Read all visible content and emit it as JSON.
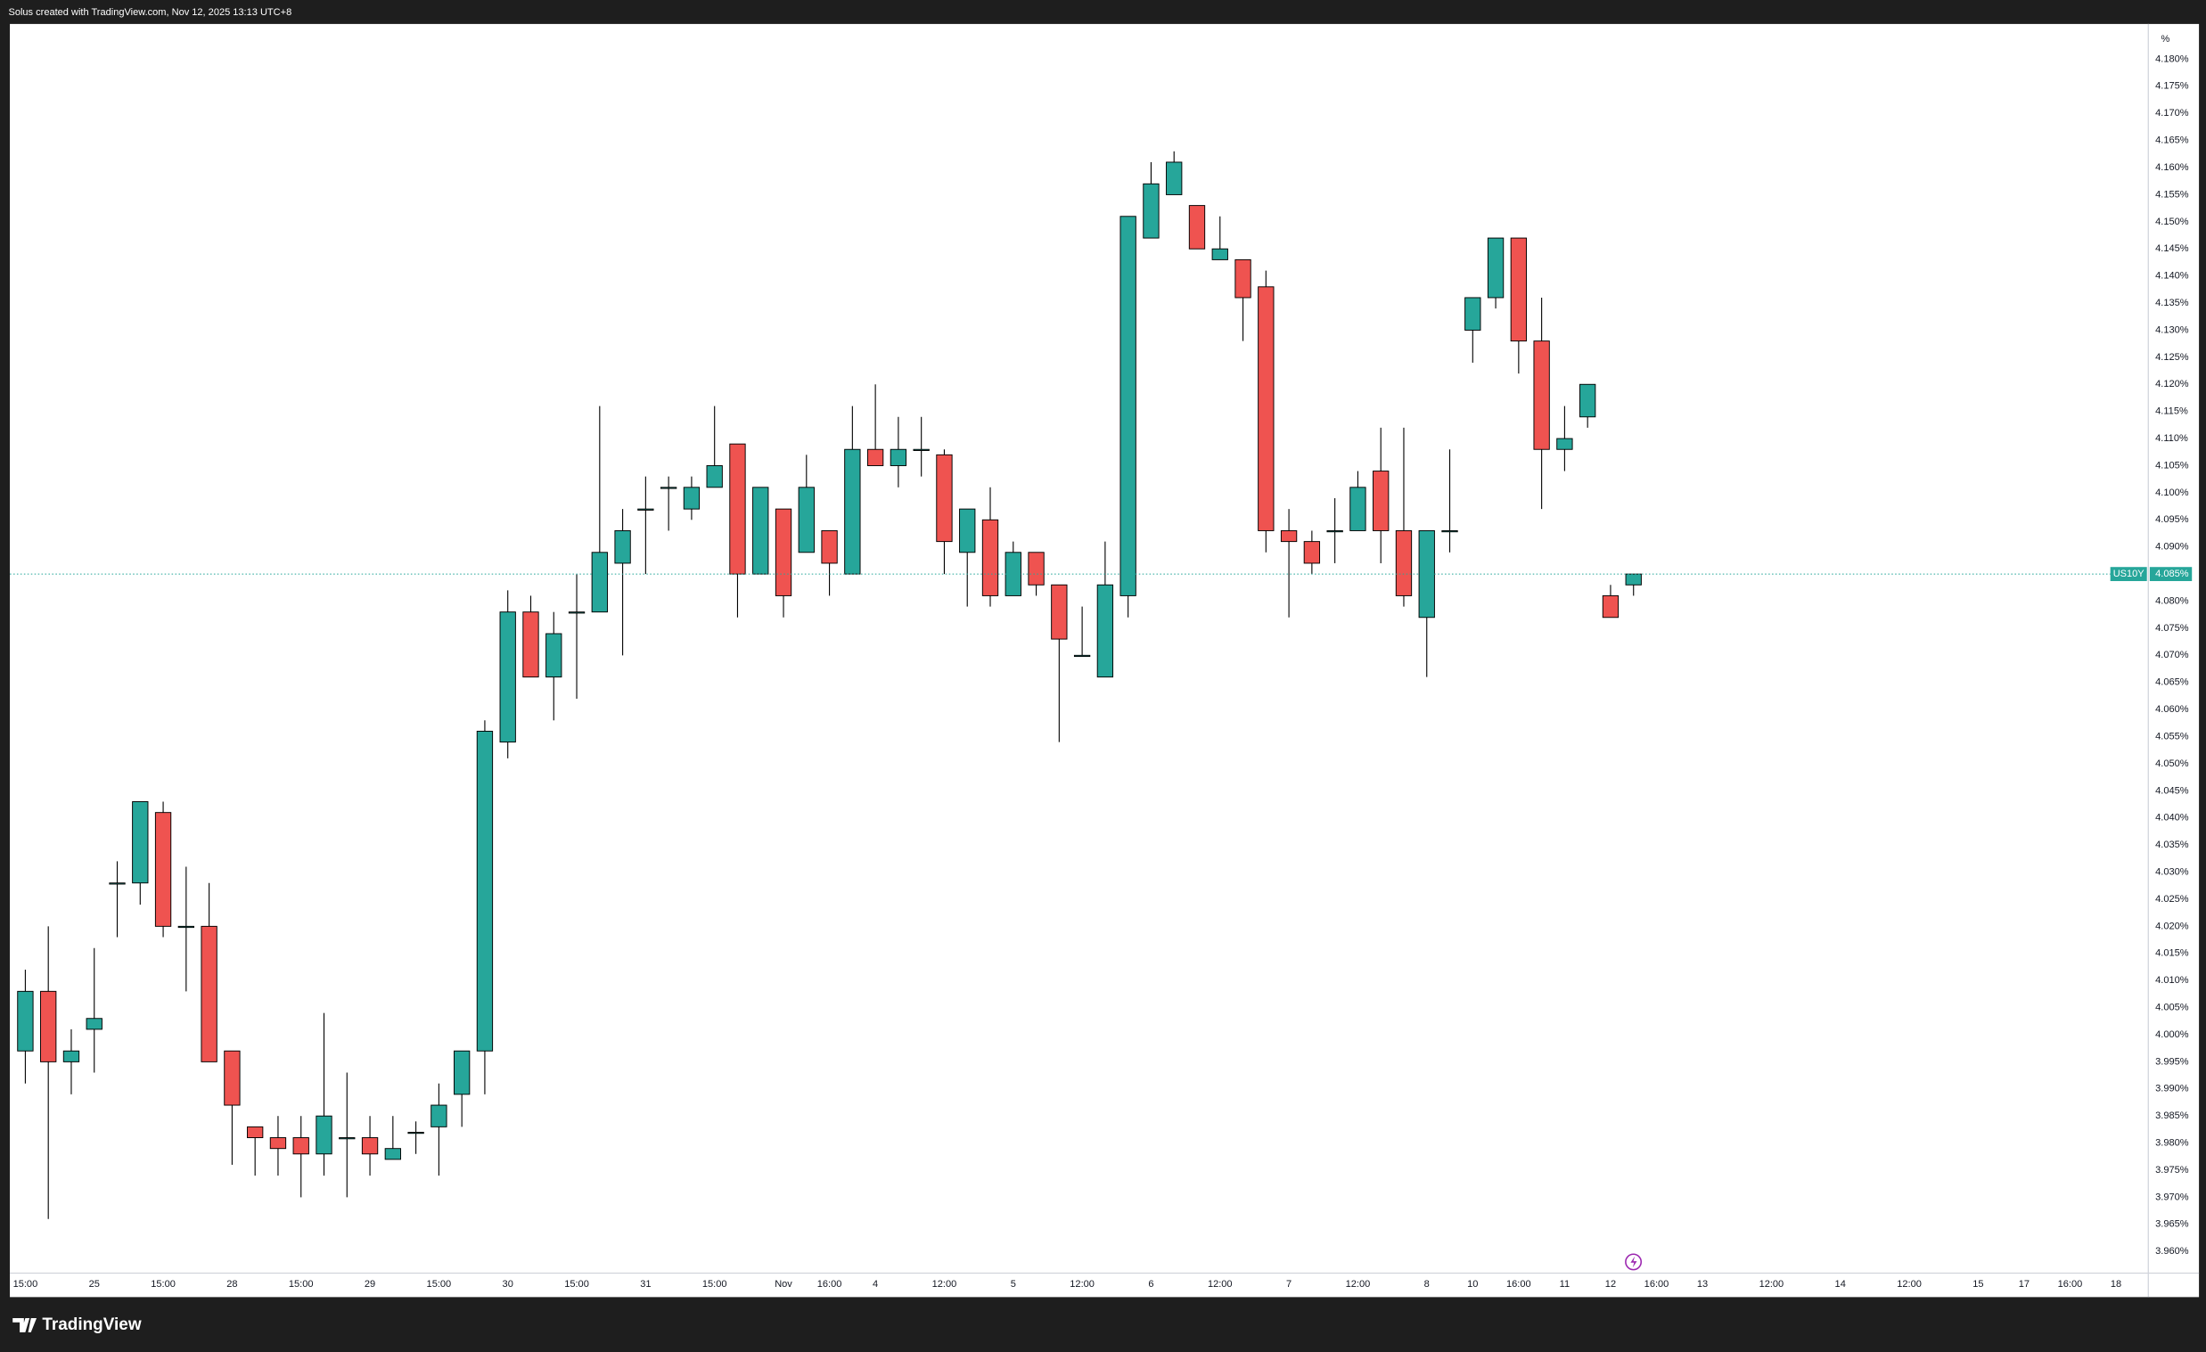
{
  "header": "Solus created with TradingView.com, Nov 12, 2025 13:13 UTC+8",
  "footer_logo": "TradingView",
  "chart_data": {
    "type": "candlestick",
    "symbol": "US10Y",
    "y_unit": "%",
    "up_color": "#26a69a",
    "down_color": "#ef5350",
    "grid": false,
    "categories": [
      "15:00",
      null,
      null,
      "25",
      null,
      null,
      "15:00",
      null,
      null,
      "28",
      null,
      null,
      "15:00",
      null,
      null,
      "29",
      null,
      null,
      "15:00",
      null,
      null,
      "30",
      null,
      null,
      "15:00",
      null,
      null,
      "31",
      null,
      null,
      "15:00",
      null,
      null,
      "Nov",
      null,
      "16:00",
      null,
      "4",
      null,
      null,
      "12:00",
      null,
      null,
      "5",
      null,
      null,
      "12:00",
      null,
      null,
      "6",
      null,
      null,
      "12:00",
      null,
      null,
      "7",
      null,
      null,
      "12:00",
      null,
      null,
      "8",
      null,
      "10",
      null,
      "16:00",
      null,
      "11",
      null,
      "12",
      null,
      "16:00",
      null,
      "13",
      null,
      null,
      "12:00",
      null,
      null,
      "14",
      null,
      null,
      "12:00",
      null,
      null,
      "15",
      null,
      "17",
      null,
      "16:00",
      null,
      "18"
    ],
    "open": [
      3.997,
      4.008,
      3.995,
      4.001,
      4.028,
      4.028,
      4.041,
      4.02,
      4.02,
      3.997,
      3.983,
      3.981,
      3.981,
      3.978,
      3.981,
      3.981,
      3.977,
      3.982,
      3.983,
      3.989,
      3.997,
      4.054,
      4.078,
      4.066,
      4.078,
      4.078,
      4.087,
      4.097,
      4.101,
      4.097,
      4.101,
      4.109,
      4.085,
      4.097,
      4.089,
      4.093,
      4.085,
      4.108,
      4.105,
      4.108,
      4.107,
      4.089,
      4.095,
      4.081,
      4.089,
      4.083,
      4.07,
      4.066,
      4.081,
      4.147,
      4.155,
      4.153,
      4.143,
      4.143,
      4.138,
      4.093,
      4.091,
      4.093,
      4.093,
      4.104,
      4.093,
      4.077,
      4.093,
      4.13,
      4.136,
      4.147,
      4.128,
      4.108,
      4.114,
      4.081,
      4.083,
      null,
      null,
      null,
      null,
      null,
      null,
      null,
      null,
      null,
      null,
      null,
      null,
      null,
      null,
      null,
      null,
      null,
      null,
      null,
      null,
      null
    ],
    "high": [
      4.012,
      4.02,
      4.001,
      4.016,
      4.032,
      4.043,
      4.043,
      4.031,
      4.028,
      3.997,
      3.983,
      3.985,
      3.985,
      4.004,
      3.993,
      3.985,
      3.985,
      3.984,
      3.991,
      3.997,
      4.058,
      4.082,
      4.081,
      4.078,
      4.085,
      4.116,
      4.097,
      4.103,
      4.103,
      4.103,
      4.116,
      4.109,
      4.101,
      4.097,
      4.107,
      4.093,
      4.116,
      4.12,
      4.114,
      4.114,
      4.108,
      4.097,
      4.101,
      4.091,
      4.089,
      4.083,
      4.079,
      4.091,
      4.151,
      4.161,
      4.163,
      4.153,
      4.151,
      4.143,
      4.141,
      4.097,
      4.093,
      4.099,
      4.104,
      4.112,
      4.112,
      4.093,
      4.108,
      4.136,
      4.147,
      4.147,
      4.136,
      4.116,
      4.12,
      4.083,
      4.085,
      null,
      null,
      null,
      null,
      null,
      null,
      null,
      null,
      null,
      null,
      null,
      null,
      null,
      null,
      null,
      null,
      null,
      null,
      null,
      null,
      null
    ],
    "low": [
      3.991,
      3.966,
      3.989,
      3.993,
      4.018,
      4.024,
      4.018,
      4.008,
      3.995,
      3.976,
      3.974,
      3.974,
      3.97,
      3.974,
      3.97,
      3.974,
      3.977,
      3.978,
      3.974,
      3.983,
      3.989,
      4.051,
      4.066,
      4.058,
      4.062,
      4.078,
      4.07,
      4.085,
      4.093,
      4.095,
      4.101,
      4.077,
      4.085,
      4.077,
      4.089,
      4.081,
      4.085,
      4.105,
      4.101,
      4.103,
      4.085,
      4.079,
      4.079,
      4.081,
      4.081,
      4.054,
      4.07,
      4.066,
      4.077,
      4.147,
      4.155,
      4.145,
      4.143,
      4.128,
      4.089,
      4.077,
      4.085,
      4.087,
      4.093,
      4.087,
      4.079,
      4.066,
      4.089,
      4.124,
      4.134,
      4.122,
      4.097,
      4.104,
      4.112,
      4.077,
      4.081,
      null,
      null,
      null,
      null,
      null,
      null,
      null,
      null,
      null,
      null,
      null,
      null,
      null,
      null,
      null,
      null,
      null,
      null,
      null,
      null,
      null
    ],
    "close": [
      4.008,
      3.995,
      3.997,
      4.003,
      4.028,
      4.043,
      4.02,
      4.02,
      3.995,
      3.987,
      3.981,
      3.979,
      3.978,
      3.985,
      3.981,
      3.978,
      3.979,
      3.982,
      3.987,
      3.997,
      4.056,
      4.078,
      4.066,
      4.074,
      4.078,
      4.089,
      4.093,
      4.097,
      4.101,
      4.101,
      4.105,
      4.085,
      4.101,
      4.081,
      4.101,
      4.087,
      4.108,
      4.105,
      4.108,
      4.108,
      4.091,
      4.097,
      4.081,
      4.089,
      4.083,
      4.073,
      4.07,
      4.083,
      4.151,
      4.157,
      4.161,
      4.145,
      4.145,
      4.136,
      4.093,
      4.091,
      4.087,
      4.093,
      4.101,
      4.093,
      4.081,
      4.093,
      4.093,
      4.136,
      4.147,
      4.128,
      4.108,
      4.11,
      4.12,
      4.077,
      4.085,
      null,
      null,
      null,
      null,
      null,
      null,
      null,
      null,
      null,
      null,
      null,
      null,
      null,
      null,
      null,
      null,
      null,
      null,
      null,
      null,
      null
    ],
    "last_price": {
      "value": 4.085,
      "label": "4.085%"
    },
    "ylim": [
      3.956,
      4.1865
    ],
    "yticks": [
      {
        "value": 3.96,
        "label": "3.960%"
      },
      {
        "value": 3.965,
        "label": "3.965%"
      },
      {
        "value": 3.97,
        "label": "3.970%"
      },
      {
        "value": 3.975,
        "label": "3.975%"
      },
      {
        "value": 3.98,
        "label": "3.980%"
      },
      {
        "value": 3.985,
        "label": "3.985%"
      },
      {
        "value": 3.99,
        "label": "3.990%"
      },
      {
        "value": 3.995,
        "label": "3.995%"
      },
      {
        "value": 4.0,
        "label": "4.000%"
      },
      {
        "value": 4.005,
        "label": "4.005%"
      },
      {
        "value": 4.01,
        "label": "4.010%"
      },
      {
        "value": 4.015,
        "label": "4.015%"
      },
      {
        "value": 4.02,
        "label": "4.020%"
      },
      {
        "value": 4.025,
        "label": "4.025%"
      },
      {
        "value": 4.03,
        "label": "4.030%"
      },
      {
        "value": 4.035,
        "label": "4.035%"
      },
      {
        "value": 4.04,
        "label": "4.040%"
      },
      {
        "value": 4.045,
        "label": "4.045%"
      },
      {
        "value": 4.05,
        "label": "4.050%"
      },
      {
        "value": 4.055,
        "label": "4.055%"
      },
      {
        "value": 4.06,
        "label": "4.060%"
      },
      {
        "value": 4.065,
        "label": "4.065%"
      },
      {
        "value": 4.07,
        "label": "4.070%"
      },
      {
        "value": 4.075,
        "label": "4.075%"
      },
      {
        "value": 4.08,
        "label": "4.080%"
      },
      {
        "value": 4.09,
        "label": "4.090%"
      },
      {
        "value": 4.095,
        "label": "4.095%"
      },
      {
        "value": 4.1,
        "label": "4.100%"
      },
      {
        "value": 4.105,
        "label": "4.105%"
      },
      {
        "value": 4.11,
        "label": "4.110%"
      },
      {
        "value": 4.115,
        "label": "4.115%"
      },
      {
        "value": 4.12,
        "label": "4.120%"
      },
      {
        "value": 4.125,
        "label": "4.125%"
      },
      {
        "value": 4.13,
        "label": "4.130%"
      },
      {
        "value": 4.135,
        "label": "4.135%"
      },
      {
        "value": 4.14,
        "label": "4.140%"
      },
      {
        "value": 4.145,
        "label": "4.145%"
      },
      {
        "value": 4.15,
        "label": "4.150%"
      },
      {
        "value": 4.155,
        "label": "4.155%"
      },
      {
        "value": 4.16,
        "label": "4.160%"
      },
      {
        "value": 4.165,
        "label": "4.165%"
      },
      {
        "value": 4.17,
        "label": "4.170%"
      },
      {
        "value": 4.175,
        "label": "4.175%"
      },
      {
        "value": 4.18,
        "label": "4.180%"
      }
    ]
  }
}
